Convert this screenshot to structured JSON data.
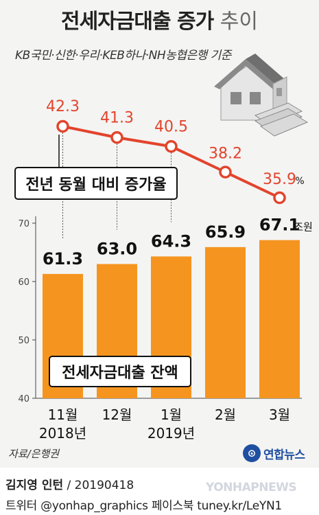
{
  "title_bold": "전세자금대출 증가",
  "title_light": "추이",
  "subtitle": "KB국민·신한·우리·KEB하나·NH농협은행 기준",
  "source": "자료/은행권",
  "logo_glyph": "⊙",
  "logo_name": "연합뉴스",
  "credit_author": "김지영 인턴",
  "credit_date": "/ 20190418",
  "social": "트위터 @yonhap_graphics  페이스북 tuney.kr/LeYN1",
  "watermark": "YONHAPNEWS",
  "chart_data": {
    "type": "bar",
    "categories": [
      {
        "month": "11월",
        "year": "2018년"
      },
      {
        "month": "12월",
        "year": ""
      },
      {
        "month": "1월",
        "year": "2019년"
      },
      {
        "month": "2월",
        "year": ""
      },
      {
        "month": "3월",
        "year": ""
      }
    ],
    "bar_series": {
      "name": "전세자금대출 잔액",
      "values": [
        61.3,
        63.0,
        64.3,
        65.9,
        67.1
      ],
      "labels": [
        "61.3",
        "63.0",
        "64.3",
        "65.9",
        "67.1"
      ],
      "unit": "조원",
      "color": "#f5951f"
    },
    "line_series": {
      "name": "전년 동월 대비 증가율",
      "values": [
        42.3,
        41.3,
        40.5,
        38.2,
        35.9
      ],
      "labels": [
        "42.3",
        "41.3",
        "40.5",
        "38.2",
        "35.9"
      ],
      "unit": "%",
      "color": "#e2442c"
    },
    "y_axis": {
      "min": 40,
      "max": 70,
      "ticks": [
        40,
        50,
        60,
        70
      ]
    },
    "grid": false
  }
}
